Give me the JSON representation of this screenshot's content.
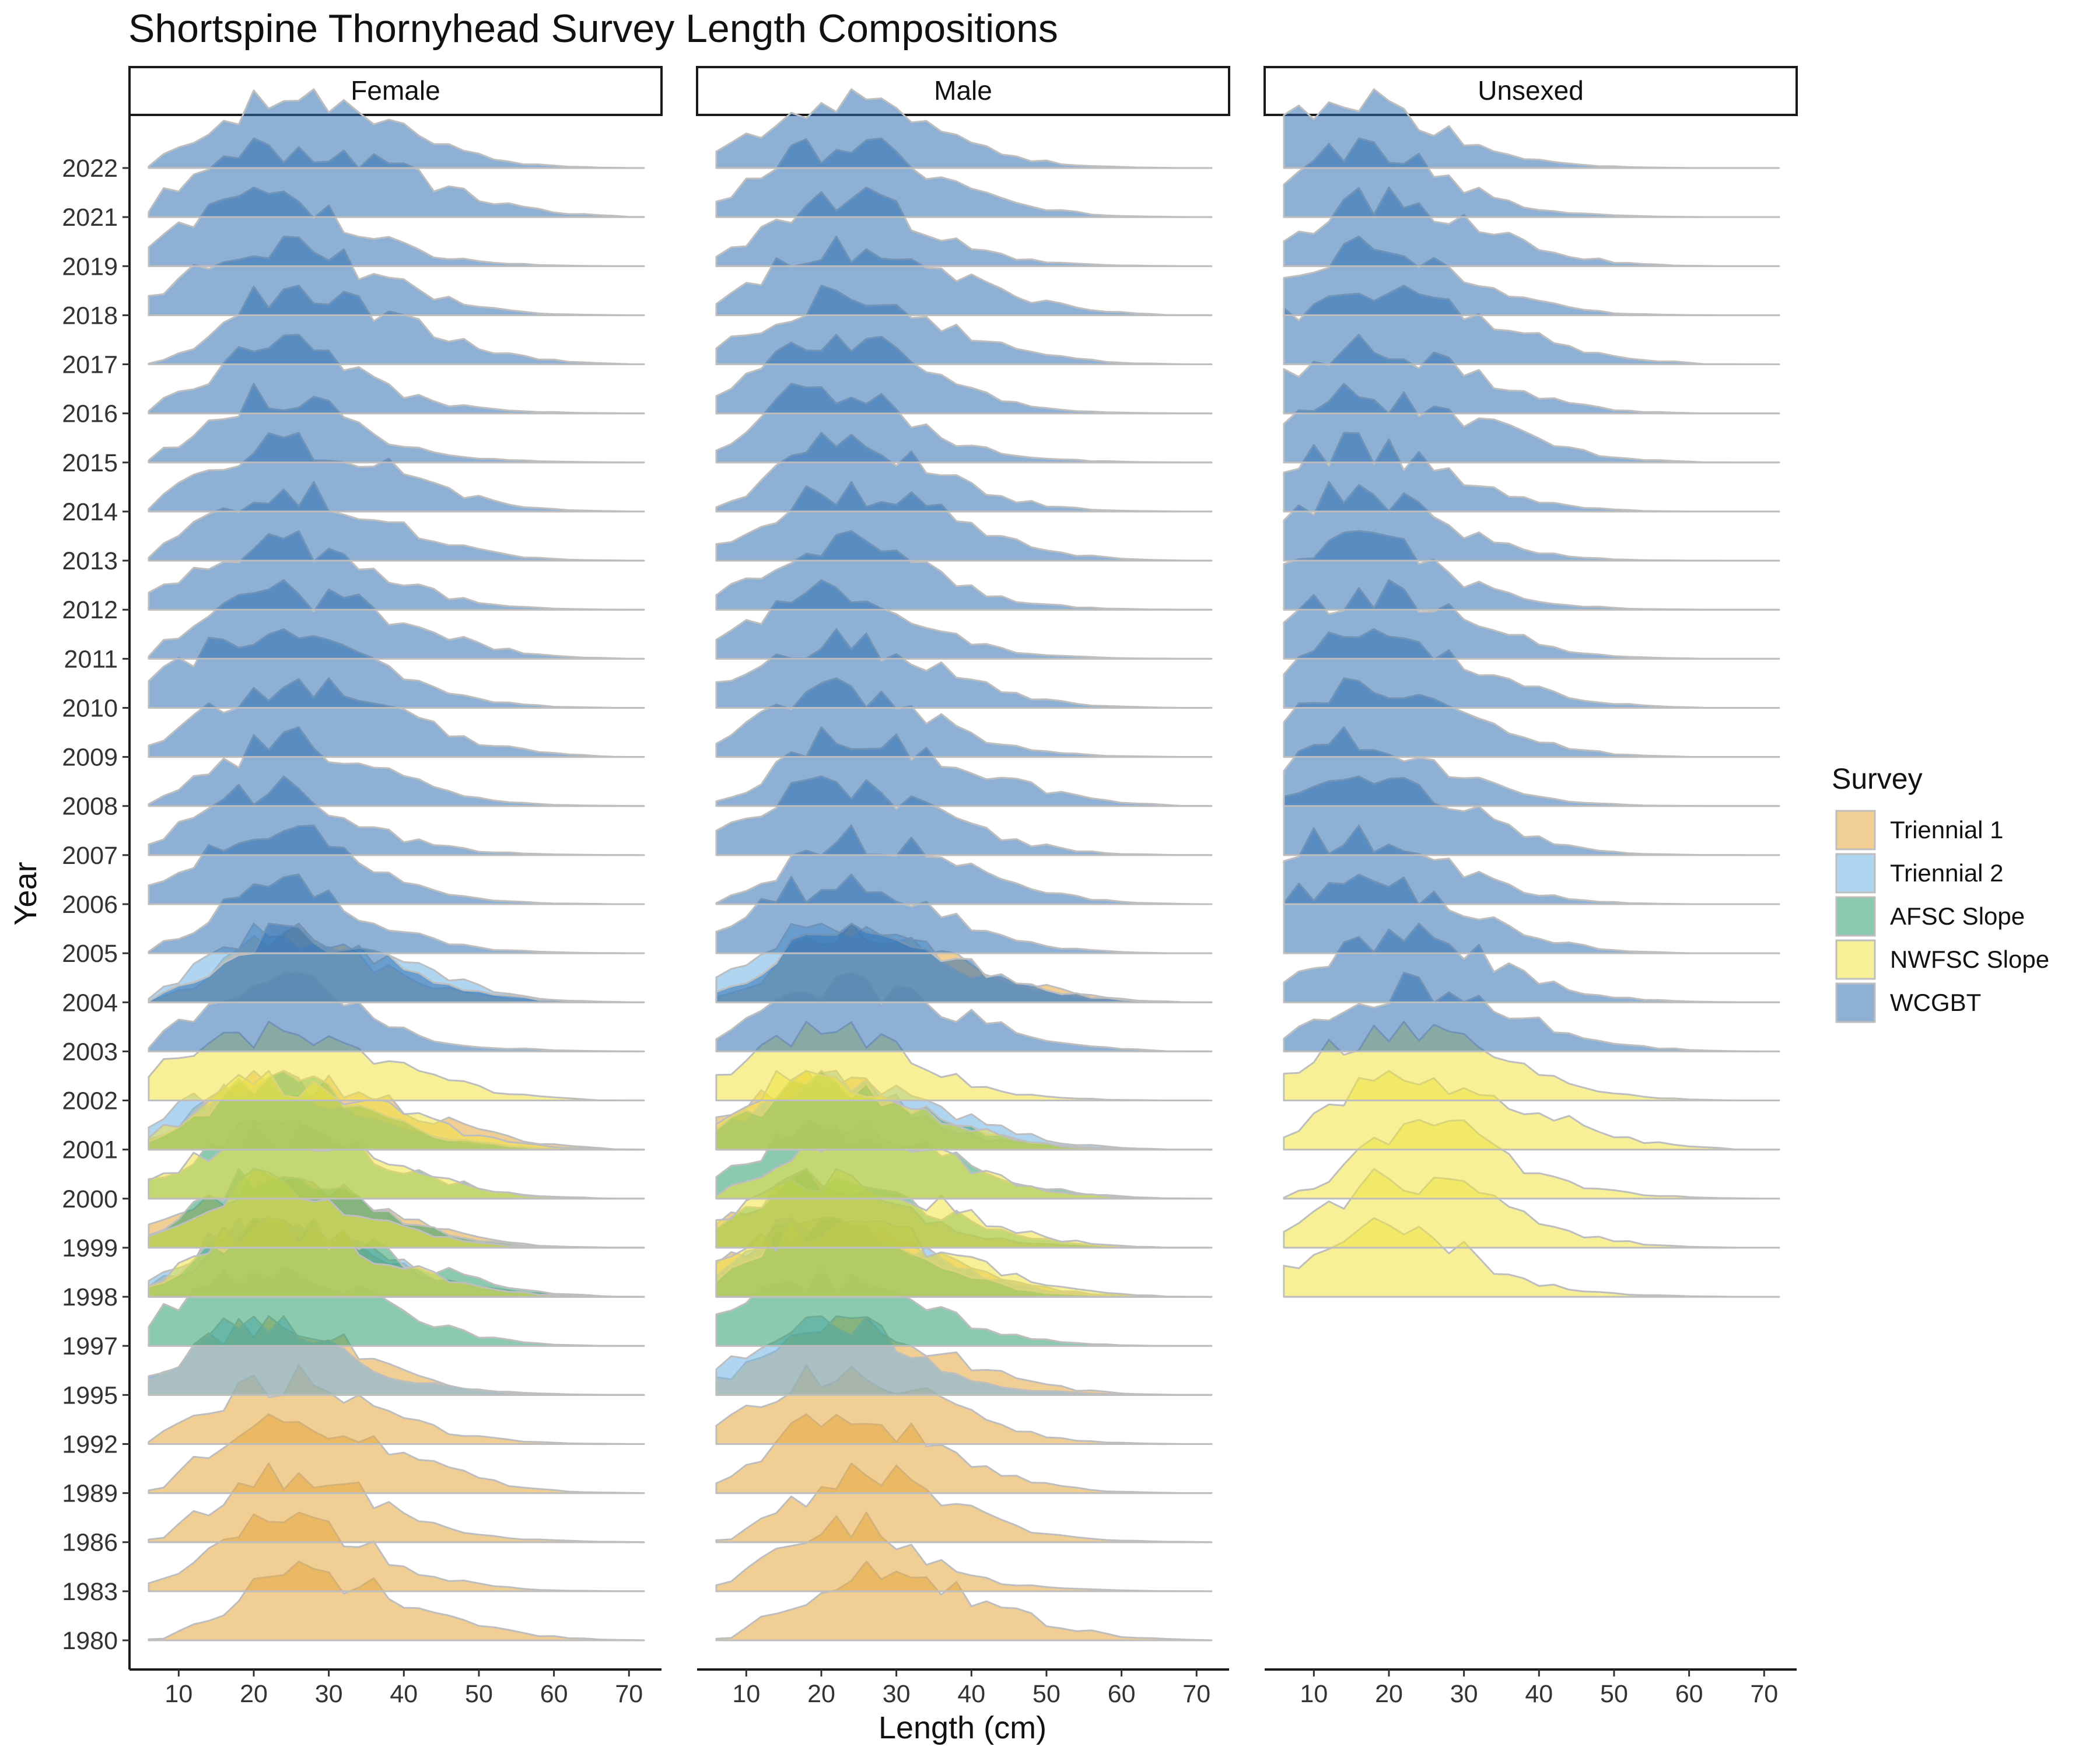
{
  "chart_data": {
    "type": "area",
    "subtype": "ridgeline",
    "title": "Shortspine Thornyhead Survey Length Compositions",
    "xlabel": "Length (cm)",
    "ylabel": "Year",
    "xlim": [
      5,
      72
    ],
    "x_ticks": [
      10,
      20,
      30,
      40,
      50,
      60,
      70
    ],
    "years": [
      "1980",
      "1983",
      "1986",
      "1989",
      "1992",
      "1995",
      "1997",
      "1998",
      "1999",
      "2000",
      "2001",
      "2002",
      "2003",
      "2004",
      "2005",
      "2006",
      "2007",
      "2008",
      "2009",
      "2010",
      "2011",
      "2012",
      "2013",
      "2014",
      "2015",
      "2016",
      "2017",
      "2018",
      "2019",
      "2021",
      "2022"
    ],
    "panels": [
      "Female",
      "Male",
      "Unsexed"
    ],
    "grid": false,
    "legend": {
      "title": "Survey",
      "position": "right",
      "entries": [
        {
          "name": "Triennial 1",
          "color": "#E6A53C"
        },
        {
          "name": "Triennial 2",
          "color": "#6FB3E6"
        },
        {
          "name": "AFSC Slope",
          "color": "#2E9E6E"
        },
        {
          "name": "NWFSC Slope",
          "color": "#F0E442"
        },
        {
          "name": "WCGBT",
          "color": "#2F6FB0"
        }
      ]
    },
    "fill_opacity": 0.55,
    "outline_color": "#BEBEBE",
    "series": [
      {
        "panel": "Female",
        "survey": "Triennial 1",
        "years": [
          "1980",
          "1983",
          "1986",
          "1989",
          "1992",
          "1995",
          "1998",
          "1999",
          "2001",
          "2004"
        ],
        "peak_length_cm": [
          26,
          22,
          26,
          25,
          24,
          22,
          22,
          22,
          22,
          24
        ]
      },
      {
        "panel": "Female",
        "survey": "Triennial 2",
        "years": [
          "1995",
          "1998",
          "2001",
          "2004"
        ],
        "peak_length_cm": [
          21,
          19,
          20,
          23
        ]
      },
      {
        "panel": "Female",
        "survey": "AFSC Slope",
        "years": [
          "1997",
          "1998",
          "1999",
          "2000",
          "2001"
        ],
        "peak_length_cm": [
          20,
          22,
          21,
          20,
          22
        ]
      },
      {
        "panel": "Female",
        "survey": "NWFSC Slope",
        "years": [
          "1998",
          "1999",
          "2000",
          "2001",
          "2002"
        ],
        "peak_length_cm": [
          21,
          21,
          22,
          21,
          20
        ]
      },
      {
        "panel": "Female",
        "survey": "WCGBT",
        "years": [
          "2003",
          "2004",
          "2005",
          "2006",
          "2007",
          "2008",
          "2009",
          "2010",
          "2011",
          "2012",
          "2013",
          "2014",
          "2015",
          "2016",
          "2017",
          "2018",
          "2019",
          "2021",
          "2022"
        ],
        "peak_length_cm": [
          24,
          24,
          23,
          22,
          22,
          24,
          22,
          22,
          24,
          22,
          24,
          23,
          23,
          24,
          24,
          22,
          22,
          24,
          24
        ]
      },
      {
        "panel": "Male",
        "survey": "Triennial 1",
        "years": [
          "1980",
          "1983",
          "1986",
          "1989",
          "1992",
          "1995",
          "1998",
          "1999",
          "2001",
          "2004"
        ],
        "peak_length_cm": [
          26,
          22,
          26,
          22,
          22,
          22,
          20,
          20,
          20,
          22
        ]
      },
      {
        "panel": "Male",
        "survey": "Triennial 2",
        "years": [
          "1995",
          "1998",
          "2001",
          "2004"
        ],
        "peak_length_cm": [
          20,
          19,
          20,
          22
        ]
      },
      {
        "panel": "Male",
        "survey": "AFSC Slope",
        "years": [
          "1997",
          "1998",
          "1999",
          "2000",
          "2001"
        ],
        "peak_length_cm": [
          18,
          20,
          20,
          20,
          20
        ]
      },
      {
        "panel": "Male",
        "survey": "NWFSC Slope",
        "years": [
          "1998",
          "1999",
          "2000",
          "2001",
          "2002"
        ],
        "peak_length_cm": [
          20,
          20,
          23,
          20,
          20
        ]
      },
      {
        "panel": "Male",
        "survey": "WCGBT",
        "years": [
          "2003",
          "2004",
          "2005",
          "2006",
          "2007",
          "2008",
          "2009",
          "2010",
          "2011",
          "2012",
          "2013",
          "2014",
          "2015",
          "2016",
          "2017",
          "2018",
          "2019",
          "2021",
          "2022"
        ],
        "peak_length_cm": [
          20,
          22,
          20,
          24,
          22,
          22,
          22,
          22,
          22,
          22,
          22,
          22,
          21,
          22,
          22,
          20,
          22,
          22,
          22
        ]
      },
      {
        "panel": "Unsexed",
        "survey": "NWFSC Slope",
        "years": [
          "1998",
          "1999",
          "2000",
          "2001",
          "2002"
        ],
        "peak_length_cm": [
          20,
          20,
          24,
          20,
          20
        ]
      },
      {
        "panel": "Unsexed",
        "survey": "WCGBT",
        "years": [
          "2003",
          "2004",
          "2005",
          "2006",
          "2007",
          "2008",
          "2009",
          "2010",
          "2011",
          "2012",
          "2013",
          "2014",
          "2015",
          "2016",
          "2017",
          "2018",
          "2019",
          "2021",
          "2022"
        ],
        "peak_length_cm": [
          22,
          22,
          14,
          14,
          15,
          15,
          14,
          15,
          16,
          16,
          14,
          14,
          15,
          16,
          16,
          16,
          18,
          16,
          14
        ]
      }
    ]
  }
}
